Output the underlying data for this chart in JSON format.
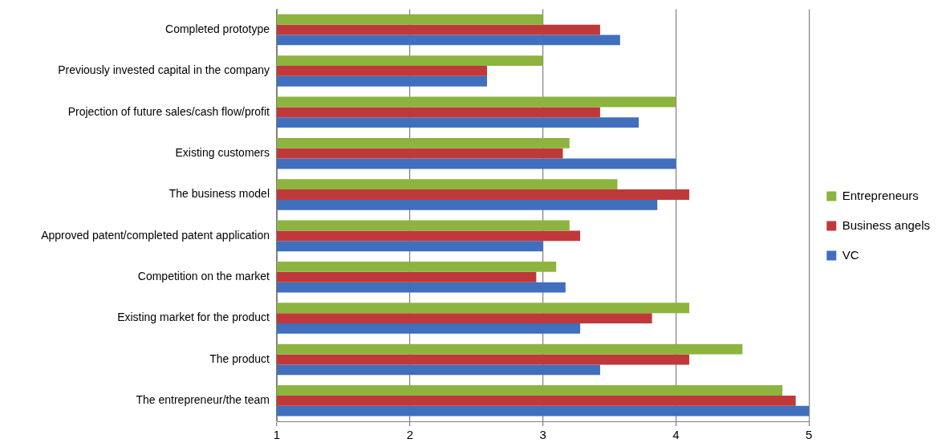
{
  "chart_data": {
    "type": "bar",
    "orientation": "horizontal",
    "categories": [
      "Completed prototype",
      "Previously invested capital in the company",
      "Projection of future sales/cash flow/profit",
      "Existing customers",
      "The business model",
      "Approved patent/completed patent application",
      "Competition on the market",
      "Existing market for the product",
      "The product",
      "The entrepreneur/the team"
    ],
    "series": [
      {
        "name": "Entrepreneurs",
        "color": "#8cb43f",
        "values": [
          3.0,
          3.0,
          4.0,
          3.2,
          3.56,
          3.2,
          3.1,
          4.1,
          4.5,
          4.8
        ]
      },
      {
        "name": "Business angels",
        "color": "#c0393a",
        "values": [
          3.43,
          2.58,
          3.43,
          3.15,
          4.1,
          3.28,
          2.95,
          3.82,
          4.1,
          4.9
        ]
      },
      {
        "name": "VC",
        "color": "#3f6fbd",
        "values": [
          3.58,
          2.58,
          3.72,
          4.0,
          3.86,
          3.0,
          3.17,
          3.28,
          3.43,
          5.0
        ]
      }
    ],
    "xlim": [
      1,
      5
    ],
    "xticks": [
      1,
      2,
      3,
      4,
      5
    ],
    "grid": "x",
    "legend": "right"
  }
}
